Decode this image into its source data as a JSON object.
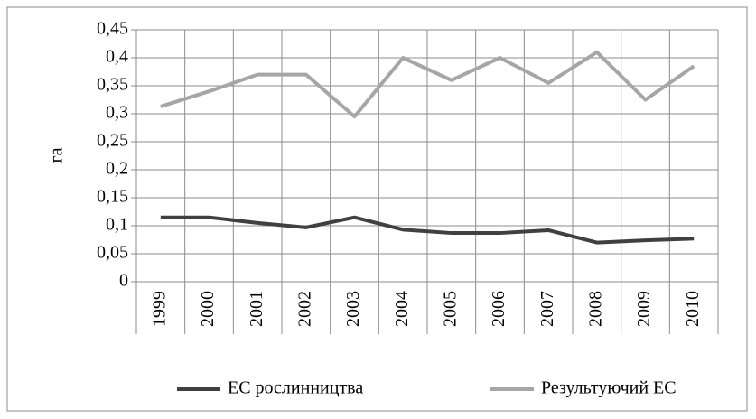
{
  "chart_data": {
    "type": "line",
    "y_label": "га",
    "categories": [
      "1999",
      "2000",
      "2001",
      "2002",
      "2003",
      "2004",
      "2005",
      "2006",
      "2007",
      "2008",
      "2009",
      "2010"
    ],
    "series": [
      {
        "name": "ЕС рослинництва",
        "color": "#404040",
        "values": [
          0.115,
          0.115,
          0.105,
          0.097,
          0.115,
          0.093,
          0.087,
          0.087,
          0.092,
          0.07,
          0.074,
          0.077
        ]
      },
      {
        "name": "Результуючий ЕС",
        "color": "#a6a6a6",
        "values": [
          0.313,
          0.34,
          0.37,
          0.37,
          0.295,
          0.4,
          0.36,
          0.4,
          0.355,
          0.41,
          0.325,
          0.385
        ]
      }
    ],
    "ylim": [
      0,
      0.45
    ],
    "yticks": [
      0,
      {
        "value": 0.05,
        "label": "0,05"
      },
      {
        "value": 0.1,
        "label": "0,1"
      },
      {
        "value": 0.15,
        "label": "0,15"
      },
      {
        "value": 0.2,
        "label": "0,2"
      },
      {
        "value": 0.25,
        "label": "0,25"
      },
      {
        "value": 0.3,
        "label": "0,3"
      },
      {
        "value": 0.35,
        "label": "0,35"
      },
      {
        "value": 0.4,
        "label": "0,4"
      },
      {
        "value": 0.45,
        "label": "0,45"
      }
    ],
    "grid": true,
    "legend": "bottom"
  }
}
